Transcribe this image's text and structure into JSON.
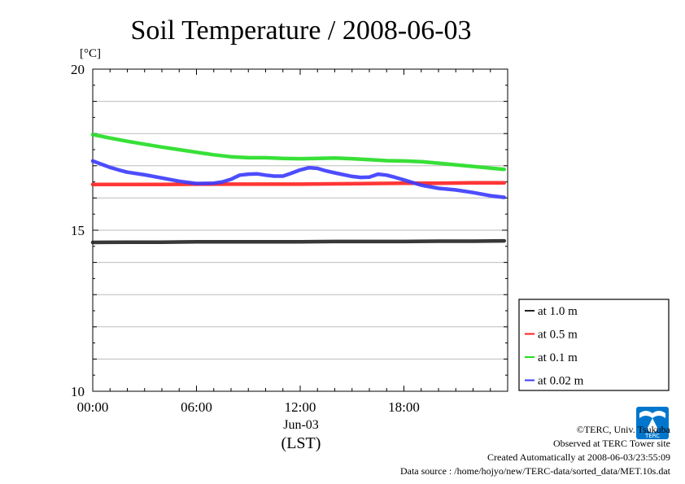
{
  "chart_data": {
    "type": "line",
    "title": "Soil Temperature / 2008-06-03",
    "ylabel": "[°C]",
    "xlabel": "(LST)",
    "date_label": "Jun-03",
    "ylim": [
      10,
      20
    ],
    "y_ticks": [
      "20",
      "15",
      "10"
    ],
    "y_tick_values": [
      20,
      15,
      10
    ],
    "xlim": [
      0,
      24
    ],
    "x_ticks": [
      "00:00",
      "06:00",
      "12:00",
      "18:00"
    ],
    "x_tick_values": [
      0,
      6,
      12,
      18
    ],
    "grid": true,
    "legend_position": "right-bottom",
    "series": [
      {
        "name": "at 1.0 m",
        "color": "#222222",
        "x": [
          0,
          2,
          4,
          6,
          8,
          10,
          12,
          14,
          16,
          18,
          20,
          22,
          23.8
        ],
        "y": [
          14.62,
          14.63,
          14.63,
          14.64,
          14.64,
          14.64,
          14.64,
          14.65,
          14.65,
          14.65,
          14.66,
          14.66,
          14.67
        ]
      },
      {
        "name": "at 0.5 m",
        "color": "#ff2020",
        "x": [
          0,
          2,
          4,
          6,
          8,
          10,
          12,
          14,
          16,
          18,
          20,
          22,
          23.8
        ],
        "y": [
          16.42,
          16.42,
          16.42,
          16.43,
          16.43,
          16.43,
          16.43,
          16.44,
          16.45,
          16.46,
          16.46,
          16.47,
          16.47
        ]
      },
      {
        "name": "at 0.1 m",
        "color": "#22dd22",
        "x": [
          0,
          1,
          2,
          3,
          4,
          5,
          6,
          7,
          8,
          9,
          10,
          11,
          12,
          13,
          14,
          15,
          16,
          17,
          18,
          19,
          20,
          21,
          22,
          23,
          23.8
        ],
        "y": [
          17.97,
          17.86,
          17.76,
          17.67,
          17.58,
          17.5,
          17.42,
          17.34,
          17.28,
          17.25,
          17.25,
          17.23,
          17.22,
          17.23,
          17.24,
          17.22,
          17.19,
          17.16,
          17.15,
          17.13,
          17.08,
          17.03,
          16.98,
          16.93,
          16.89
        ]
      },
      {
        "name": "at 0.02 m",
        "color": "#3a3aff",
        "x": [
          0,
          0.5,
          1,
          1.5,
          2,
          3,
          4,
          5,
          6,
          7,
          7.5,
          8,
          8.5,
          9,
          9.5,
          10,
          10.5,
          11,
          11.5,
          12,
          12.5,
          13,
          13.5,
          14,
          15,
          15.5,
          16,
          16.5,
          17,
          17.5,
          18,
          18.5,
          19,
          20,
          21,
          22,
          23,
          23.8
        ],
        "y": [
          17.15,
          17.05,
          16.95,
          16.87,
          16.8,
          16.72,
          16.62,
          16.52,
          16.45,
          16.46,
          16.5,
          16.58,
          16.71,
          16.74,
          16.75,
          16.71,
          16.68,
          16.68,
          16.77,
          16.87,
          16.94,
          16.92,
          16.84,
          16.78,
          16.67,
          16.64,
          16.65,
          16.74,
          16.71,
          16.64,
          16.56,
          16.48,
          16.4,
          16.3,
          16.25,
          16.17,
          16.07,
          16.02
        ]
      }
    ]
  },
  "credits": {
    "copyright": "©TERC, Univ. Tsukuba",
    "site": "Observed at TERC Tower site",
    "created": "Created Automatically at 2008-06-03/23:55:09",
    "source": "Data source : /home/hojyo/new/TERC-data/sorted_data/MET.10s.dat"
  },
  "logo": {
    "name": "terc-logo",
    "text": "TERC",
    "color": "#0077cc"
  }
}
